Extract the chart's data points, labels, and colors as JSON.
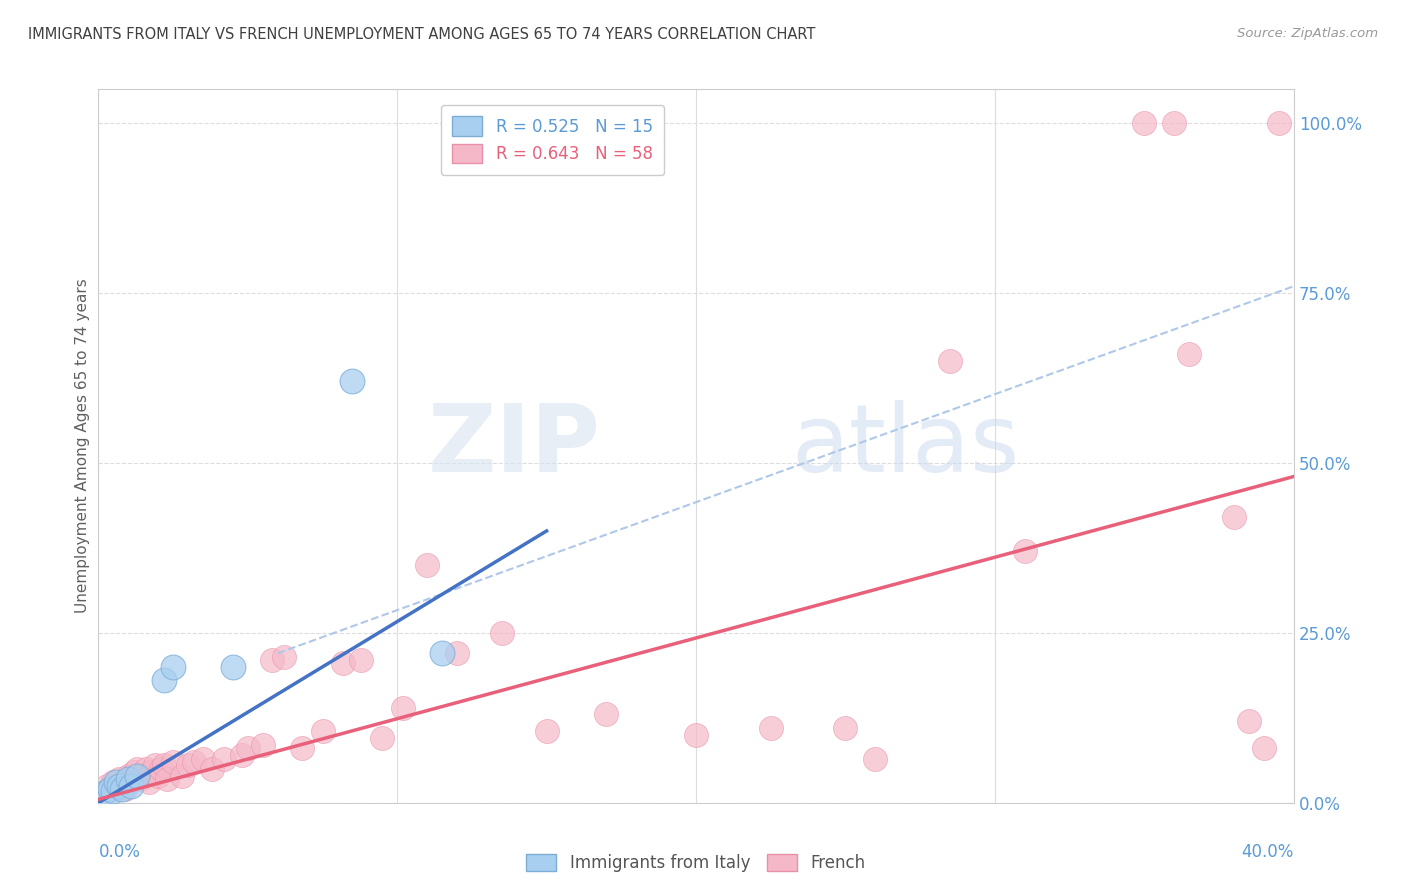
{
  "title": "IMMIGRANTS FROM ITALY VS FRENCH UNEMPLOYMENT AMONG AGES 65 TO 74 YEARS CORRELATION CHART",
  "source": "Source: ZipAtlas.com",
  "ylabel": "Unemployment Among Ages 65 to 74 years",
  "ytick_labels": [
    "0.0%",
    "25.0%",
    "50.0%",
    "75.0%",
    "100.0%"
  ],
  "ytick_vals": [
    0,
    25,
    50,
    75,
    100
  ],
  "xmin": 0.0,
  "xmax": 40.0,
  "ymin": 0.0,
  "ymax": 105.0,
  "watermark_zip": "ZIP",
  "watermark_atlas": "atlas",
  "italy_color": "#a8cff0",
  "italy_edge_color": "#7badd6",
  "french_color": "#f5b8c8",
  "french_edge_color": "#e890a8",
  "italy_line_color": "#4472c4",
  "french_line_color": "#e8607a",
  "dashed_line_color": "#b0c8e8",
  "axis_color": "#5a9bd5",
  "grid_color": "#dddddd",
  "title_color": "#404040",
  "ylabel_color": "#606060",
  "source_color": "#999999",
  "legend_italy_label": "R = 0.525   N = 15",
  "legend_french_label": "R = 0.643   N = 58",
  "bottom_legend_italy": "Immigrants from Italy",
  "bottom_legend_french": "French",
  "italy_scatter": [
    [
      0.2,
      1.5
    ],
    [
      0.4,
      2.0
    ],
    [
      0.5,
      1.8
    ],
    [
      0.6,
      3.0
    ],
    [
      0.7,
      2.5
    ],
    [
      0.8,
      2.0
    ],
    [
      1.0,
      3.5
    ],
    [
      1.1,
      2.5
    ],
    [
      1.3,
      4.0
    ],
    [
      2.2,
      18.0
    ],
    [
      2.5,
      20.0
    ],
    [
      4.5,
      20.0
    ],
    [
      8.5,
      62.0
    ],
    [
      11.5,
      22.0
    ],
    [
      13.0,
      100.0
    ]
  ],
  "french_scatter": [
    [
      0.2,
      1.5
    ],
    [
      0.3,
      2.5
    ],
    [
      0.4,
      2.0
    ],
    [
      0.5,
      3.0
    ],
    [
      0.6,
      2.5
    ],
    [
      0.7,
      3.5
    ],
    [
      0.8,
      3.0
    ],
    [
      0.9,
      2.0
    ],
    [
      1.0,
      4.0
    ],
    [
      1.1,
      3.5
    ],
    [
      1.2,
      4.5
    ],
    [
      1.3,
      5.0
    ],
    [
      1.4,
      3.5
    ],
    [
      1.5,
      4.0
    ],
    [
      1.6,
      5.0
    ],
    [
      1.7,
      3.0
    ],
    [
      1.8,
      4.5
    ],
    [
      1.9,
      5.5
    ],
    [
      2.0,
      4.0
    ],
    [
      2.1,
      5.0
    ],
    [
      2.2,
      5.5
    ],
    [
      2.3,
      3.5
    ],
    [
      2.5,
      6.0
    ],
    [
      2.8,
      4.0
    ],
    [
      3.0,
      5.5
    ],
    [
      3.2,
      6.0
    ],
    [
      3.5,
      6.5
    ],
    [
      3.8,
      5.0
    ],
    [
      4.2,
      6.5
    ],
    [
      4.8,
      7.0
    ],
    [
      5.0,
      8.0
    ],
    [
      5.5,
      8.5
    ],
    [
      5.8,
      21.0
    ],
    [
      6.2,
      21.5
    ],
    [
      6.8,
      8.0
    ],
    [
      7.5,
      10.5
    ],
    [
      8.2,
      20.5
    ],
    [
      8.8,
      21.0
    ],
    [
      9.5,
      9.5
    ],
    [
      10.2,
      14.0
    ],
    [
      11.0,
      35.0
    ],
    [
      12.0,
      22.0
    ],
    [
      13.5,
      25.0
    ],
    [
      15.0,
      10.5
    ],
    [
      17.0,
      13.0
    ],
    [
      20.0,
      10.0
    ],
    [
      22.5,
      11.0
    ],
    [
      25.0,
      11.0
    ],
    [
      26.0,
      6.5
    ],
    [
      28.5,
      65.0
    ],
    [
      31.0,
      37.0
    ],
    [
      35.0,
      100.0
    ],
    [
      36.0,
      100.0
    ],
    [
      38.0,
      42.0
    ],
    [
      38.5,
      12.0
    ],
    [
      39.0,
      8.0
    ],
    [
      36.5,
      66.0
    ],
    [
      39.5,
      100.0
    ]
  ],
  "italy_line_x": [
    0.0,
    15.0
  ],
  "italy_line_y": [
    0.0,
    40.0
  ],
  "french_line_x": [
    0.0,
    40.0
  ],
  "french_line_y": [
    0.5,
    48.0
  ],
  "dashed_line_x": [
    6.0,
    40.0
  ],
  "dashed_line_y": [
    22.0,
    76.0
  ]
}
